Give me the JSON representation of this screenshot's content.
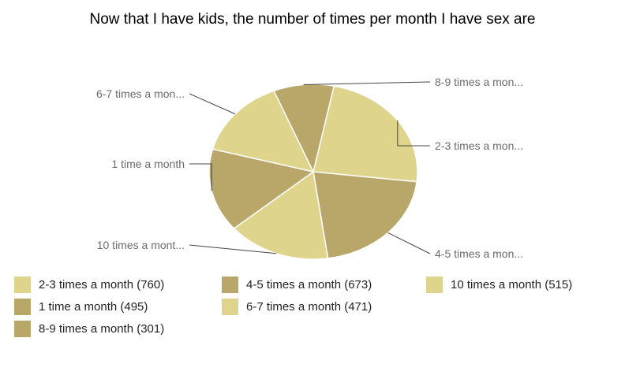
{
  "chart_data": {
    "type": "pie",
    "title": "Now that I have kids, the number of times per month I have sex are",
    "slices": [
      {
        "label": "2-3 times a month",
        "value": 760,
        "callout": "2-3 times a mon...",
        "color": "#dfd48c",
        "legend": "2-3 times a month (760)"
      },
      {
        "label": "4-5 times a month",
        "value": 673,
        "callout": "4-5 times a mon...",
        "color": "#b9a669",
        "legend": "4-5 times a month (673)"
      },
      {
        "label": "10 times a month",
        "value": 515,
        "callout": "10 times a mont...",
        "color": "#dfd48c",
        "legend": "10 times a month (515)"
      },
      {
        "label": "1 time a month",
        "value": 495,
        "callout": "1 time a month",
        "color": "#b9a669",
        "legend": "1 time a month (495)"
      },
      {
        "label": "6-7 times a month",
        "value": 471,
        "callout": "6-7 times a mon...",
        "color": "#dfd48c",
        "legend": "6-7 times a month (471)"
      },
      {
        "label": "8-9 times a month",
        "value": 301,
        "callout": "8-9 times a mon...",
        "color": "#b9a669",
        "legend": "8-9 times a month (301)"
      }
    ],
    "legend_placement": "bottom"
  }
}
